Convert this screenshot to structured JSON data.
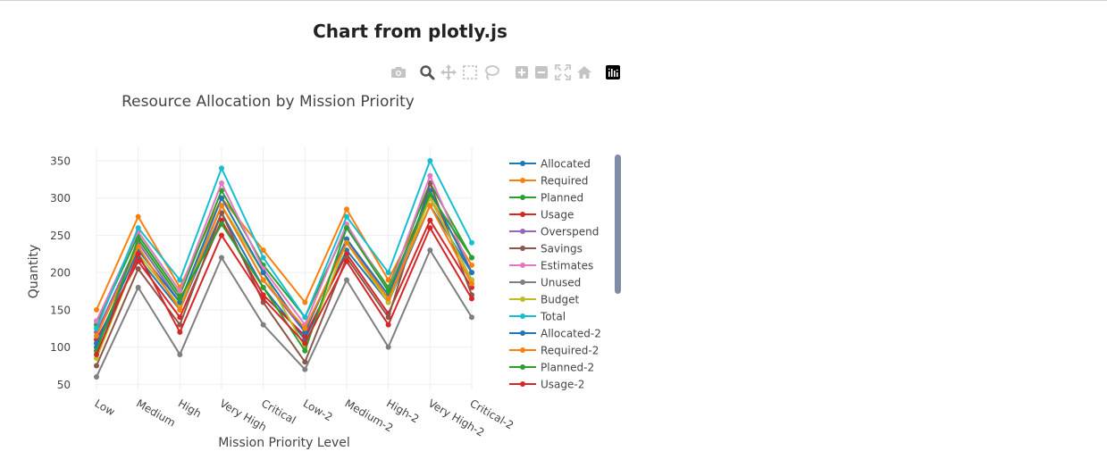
{
  "page": {
    "title": "Chart from plotly.js"
  },
  "modebar": {
    "buttons": [
      {
        "icon": "camera-icon",
        "name": "download-plot-button"
      },
      {
        "icon": "zoom-icon",
        "name": "zoom-button"
      },
      {
        "icon": "pan-icon",
        "name": "pan-button"
      },
      {
        "icon": "box-select-icon",
        "name": "box-select-button"
      },
      {
        "icon": "lasso-icon",
        "name": "lasso-select-button"
      },
      {
        "icon": "zoom-in-icon",
        "name": "zoom-in-button"
      },
      {
        "icon": "zoom-out-icon",
        "name": "zoom-out-button"
      },
      {
        "icon": "autoscale-icon",
        "name": "autoscale-button"
      },
      {
        "icon": "home-icon",
        "name": "reset-axes-button"
      },
      {
        "icon": "plotly-logo-icon",
        "name": "plotly-logo-link"
      }
    ]
  },
  "chart_data": {
    "type": "line",
    "title": "Resource Allocation by Mission Priority",
    "xlabel": "Mission Priority Level",
    "ylabel": "Quantity",
    "ylim": [
      42,
      368
    ],
    "yticks": [
      50,
      100,
      150,
      200,
      250,
      300,
      350
    ],
    "grid": true,
    "legend_position": "right",
    "categories": [
      "Low",
      "Medium",
      "High",
      "Very High",
      "Critical",
      "Low-2",
      "Medium-2",
      "High-2",
      "Very High-2",
      "Critical-2"
    ],
    "series": [
      {
        "name": "Allocated",
        "color": "#1f77b4",
        "values": [
          100,
          220,
          150,
          280,
          180,
          110,
          230,
          160,
          290,
          200
        ]
      },
      {
        "name": "Required",
        "color": "#ff7f0e",
        "values": [
          150,
          275,
          180,
          300,
          230,
          160,
          285,
          190,
          300,
          210
        ]
      },
      {
        "name": "Planned",
        "color": "#2ca02c",
        "values": [
          130,
          250,
          170,
          310,
          210,
          140,
          260,
          180,
          320,
          220
        ]
      },
      {
        "name": "Usage",
        "color": "#d62728",
        "values": [
          110,
          215,
          140,
          270,
          170,
          115,
          225,
          145,
          270,
          180
        ]
      },
      {
        "name": "Overspend",
        "color": "#9467bd",
        "values": [
          120,
          240,
          160,
          290,
          190,
          120,
          245,
          165,
          300,
          190
        ]
      },
      {
        "name": "Savings",
        "color": "#8c564b",
        "values": [
          75,
          205,
          130,
          280,
          160,
          80,
          220,
          140,
          320,
          170
        ]
      },
      {
        "name": "Estimates",
        "color": "#e377c2",
        "values": [
          135,
          255,
          175,
          320,
          205,
          130,
          265,
          175,
          330,
          200
        ]
      },
      {
        "name": "Unused",
        "color": "#7f7f7f",
        "values": [
          60,
          180,
          90,
          220,
          130,
          70,
          190,
          100,
          230,
          140
        ]
      },
      {
        "name": "Budget",
        "color": "#bcbd22",
        "values": [
          85,
          225,
          155,
          290,
          200,
          100,
          240,
          160,
          300,
          190
        ]
      },
      {
        "name": "Total",
        "color": "#17becf",
        "values": [
          125,
          260,
          190,
          340,
          220,
          140,
          275,
          200,
          350,
          240
        ]
      },
      {
        "name": "Allocated-2",
        "color": "#1f77b4",
        "values": [
          105,
          230,
          160,
          300,
          200,
          120,
          245,
          170,
          310,
          200
        ]
      },
      {
        "name": "Required-2",
        "color": "#ff7f0e",
        "values": [
          115,
          235,
          150,
          290,
          190,
          125,
          240,
          165,
          290,
          185
        ]
      },
      {
        "name": "Planned-2",
        "color": "#2ca02c",
        "values": [
          95,
          245,
          165,
          265,
          180,
          95,
          260,
          175,
          305,
          220
        ]
      },
      {
        "name": "Usage-2",
        "color": "#d62728",
        "values": [
          90,
          225,
          120,
          250,
          165,
          105,
          215,
          130,
          260,
          165
        ]
      }
    ]
  }
}
